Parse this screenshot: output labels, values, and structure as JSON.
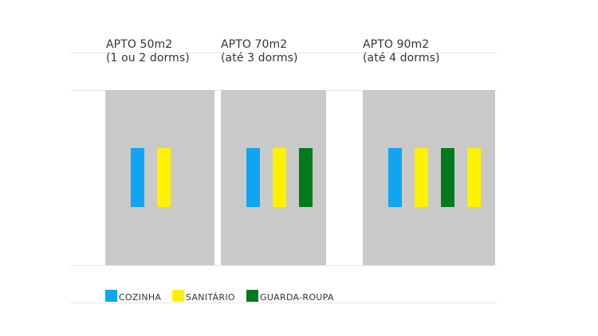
{
  "colors": {
    "background": "#ffffff",
    "panel": "#c9c9c9",
    "rule": "#e6e6e6",
    "cozinha": "#0ea5f2",
    "sanitario": "#fff200",
    "guarda_roupa": "#007a1c"
  },
  "apartments": [
    {
      "title": "APTO 50m2",
      "subtitle": "(1 ou 2 dorms)",
      "rooms": [
        "cozinha",
        "sanitario"
      ]
    },
    {
      "title": "APTO 70m2",
      "subtitle": "(até 3 dorms)",
      "rooms": [
        "cozinha",
        "sanitario",
        "guarda_roupa"
      ]
    },
    {
      "title": "APTO 90m2",
      "subtitle": "(até 4 dorms)",
      "rooms": [
        "cozinha",
        "sanitario",
        "guarda_roupa",
        "sanitario"
      ]
    }
  ],
  "legend": [
    {
      "key": "cozinha",
      "label": "COZINHA"
    },
    {
      "key": "sanitario",
      "label": "SANITÁRIO"
    },
    {
      "key": "guarda_roupa",
      "label": "GUARDA-ROUPA"
    }
  ]
}
